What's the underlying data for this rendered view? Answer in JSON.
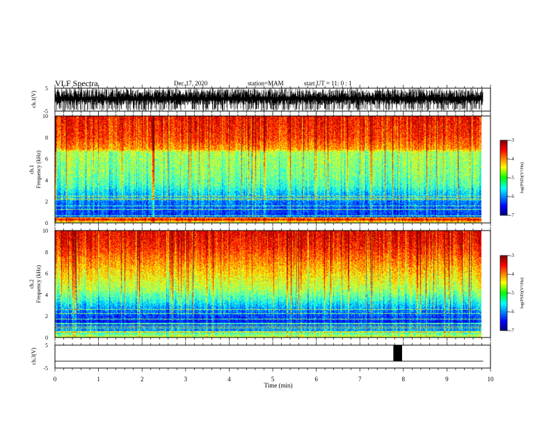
{
  "header": {
    "title": "VLF Spectra",
    "date": "Dec.17, 2020",
    "station": "station=MAM",
    "start": "start  UT =   11: 0  : 1"
  },
  "chart_data": [
    {
      "type": "line",
      "panel": "waveform-ch1",
      "ylabel": "ch.1(V)",
      "ylim": [
        -5,
        5
      ],
      "yticks": [
        -5,
        5
      ],
      "xlim": [
        0,
        10
      ],
      "data_extent_x": [
        0,
        9.83
      ],
      "signal": "dense noise waveform filling most of the range, amplitude mostly 0 to 5 V with frequent spikes to -5 V"
    },
    {
      "type": "heatmap",
      "panel": "spectrogram-ch1",
      "ylabel_line1": "ch.1",
      "ylabel_line2": "Frequency  (kHz)",
      "ylim": [
        0,
        10
      ],
      "yticks": [
        0,
        2,
        4,
        6,
        8,
        10
      ],
      "xlim": [
        0,
        10
      ],
      "data_extent_x": [
        0,
        9.83
      ],
      "colorbar": {
        "label": "log(PSD)(V²/Hz)",
        "range": [
          -7,
          -3
        ],
        "ticks": [
          -7,
          -6,
          -5,
          -4,
          -3
        ]
      },
      "frequency_profile_khz_vs_logpsd": [
        [
          0.0,
          -4.8
        ],
        [
          0.35,
          -3.3
        ],
        [
          0.6,
          -6.3
        ],
        [
          1.2,
          -6.2
        ],
        [
          2.0,
          -6.0
        ],
        [
          2.8,
          -5.6
        ],
        [
          3.5,
          -5.2
        ],
        [
          4.5,
          -5.0
        ],
        [
          5.5,
          -4.9
        ],
        [
          6.6,
          -4.8
        ],
        [
          6.9,
          -4.1
        ],
        [
          8.0,
          -3.7
        ],
        [
          10.0,
          -3.5
        ]
      ]
    },
    {
      "type": "heatmap",
      "panel": "spectrogram-ch2",
      "ylabel_line1": "ch.2",
      "ylabel_line2": "Frequency  (kHz)",
      "ylim": [
        0,
        10
      ],
      "yticks": [
        0,
        2,
        4,
        6,
        8,
        10
      ],
      "xlim": [
        0,
        10
      ],
      "data_extent_x": [
        0,
        9.83
      ],
      "colorbar": {
        "label": "log(PSD)(V²/Hz)",
        "range": [
          -7,
          -3
        ],
        "ticks": [
          -7,
          -6,
          -5,
          -4,
          -3
        ]
      },
      "frequency_profile_khz_vs_logpsd": [
        [
          0.0,
          -4.6
        ],
        [
          0.3,
          -5.0
        ],
        [
          0.8,
          -6.2
        ],
        [
          1.5,
          -6.4
        ],
        [
          2.5,
          -6.0
        ],
        [
          3.5,
          -5.3
        ],
        [
          4.5,
          -4.8
        ],
        [
          5.5,
          -4.5
        ],
        [
          6.5,
          -4.2
        ],
        [
          7.5,
          -3.9
        ],
        [
          8.5,
          -3.6
        ],
        [
          10.0,
          -3.4
        ]
      ]
    },
    {
      "type": "line",
      "panel": "waveform-ch3",
      "ylabel": "ch.3(V)",
      "ylim": [
        -5,
        5
      ],
      "yticks": [
        -5,
        5
      ],
      "xlim": [
        0,
        10
      ],
      "data_extent_x": [
        0,
        9.83
      ],
      "baseline_v": -2,
      "pulse": {
        "x_start_min": 7.77,
        "x_end_min": 7.97,
        "high_v": 5,
        "low_v": -2
      }
    }
  ],
  "xaxis": {
    "label": "Time  (min)",
    "ticks": [
      0,
      1,
      2,
      3,
      4,
      5,
      6,
      7,
      8,
      9,
      10
    ],
    "minor_step": 0.2
  },
  "colors": {
    "axes": "#000000",
    "background": "#ffffff",
    "colormap": [
      "#000080",
      "#0000ff",
      "#00ffff",
      "#00ff00",
      "#ffff00",
      "#ff0000",
      "#800000"
    ]
  }
}
